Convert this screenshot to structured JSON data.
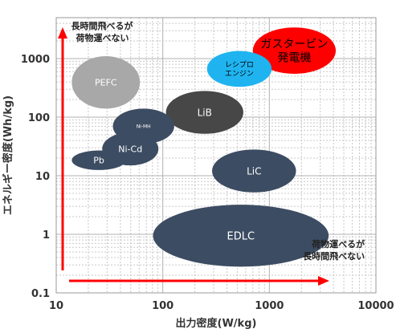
{
  "chart_data": {
    "type": "scatter",
    "x_scale": "log",
    "y_scale": "log",
    "xlabel": "出力密度(W/kg)",
    "ylabel": "エネルギー密度(Wh/kg)",
    "xlim": [
      10,
      10000
    ],
    "ylim": [
      0.1,
      5000
    ],
    "x_ticks": [
      "10",
      "100",
      "1000",
      "10000"
    ],
    "y_ticks": [
      "0.1",
      "1",
      "10",
      "100",
      "1000"
    ],
    "grid": true,
    "regions": [
      {
        "label": "ガスタービン\n発電機",
        "x_range": [
          700,
          4200
        ],
        "y_range": [
          550,
          3400
        ],
        "color": "#ff0000",
        "text_color": "#000000",
        "font_size": 14
      },
      {
        "label": "レシプロ\nエンジン",
        "x_range": [
          260,
          1050
        ],
        "y_range": [
          330,
          1350
        ],
        "color": "#1fb4f0",
        "text_color": "#000000",
        "font_size": 9
      },
      {
        "label": "PEFC",
        "x_range": [
          14,
          61
        ],
        "y_range": [
          140,
          1100
        ],
        "color": "#a8a8a8",
        "text_color": "#ffffff",
        "font_size": 11
      },
      {
        "label": "LiB",
        "x_range": [
          107,
          570
        ],
        "y_range": [
          52,
          280
        ],
        "color": "#474747",
        "text_color": "#ffffff",
        "font_size": 12
      },
      {
        "label": "Ni-MH",
        "x_range": [
          34,
          128
        ],
        "y_range": [
          35,
          140
        ],
        "color": "#3c4c62",
        "text_color": "#ffffff",
        "font_size": 6
      },
      {
        "label": "Ni-Cd",
        "x_range": [
          27,
          91
        ],
        "y_range": [
          15,
          55
        ],
        "color": "#3c4c62",
        "text_color": "#ffffff",
        "font_size": 11
      },
      {
        "label": "Pb",
        "x_range": [
          14,
          45
        ],
        "y_range": [
          12.5,
          27
        ],
        "color": "#3c4c62",
        "text_color": "#ffffff",
        "font_size": 11
      },
      {
        "label": "LiC",
        "x_range": [
          290,
          1780
        ],
        "y_range": [
          5.2,
          28
        ],
        "color": "#3c4c62",
        "text_color": "#ffffff",
        "font_size": 12
      },
      {
        "label": "EDLC",
        "x_range": [
          81,
          3600
        ],
        "y_range": [
          0.28,
          3.2
        ],
        "color": "#3c4c62",
        "text_color": "#ffffff",
        "font_size": 13
      }
    ],
    "annotations": [
      {
        "text": "長時間飛べるが\n荷物運べない",
        "x": 12,
        "y": 3200
      },
      {
        "text": "荷物運べるが\n長時間飛べない",
        "x": 3300,
        "y": 0.6
      }
    ],
    "arrows": [
      {
        "direction": "up",
        "color": "#ff0000"
      },
      {
        "direction": "right",
        "color": "#ff0000"
      }
    ]
  }
}
